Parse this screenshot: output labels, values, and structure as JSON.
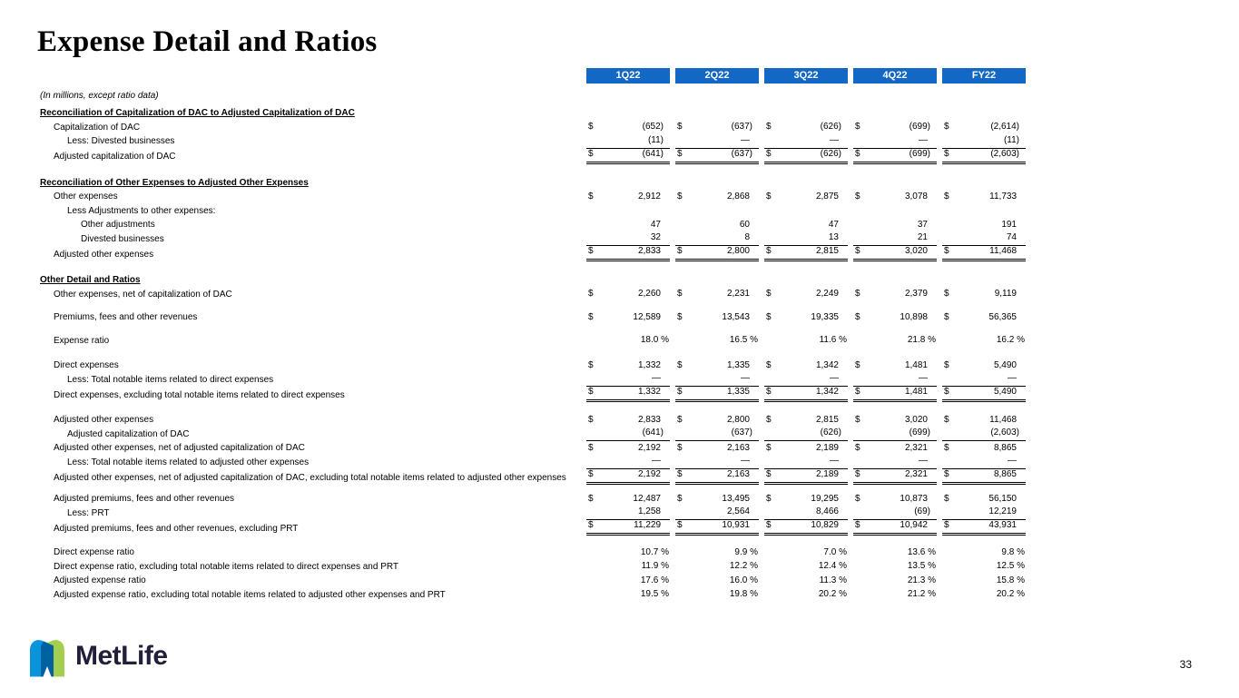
{
  "slide": {
    "title": "Expense Detail and Ratios",
    "units_note": "(In millions, except ratio data)",
    "page_number": "33"
  },
  "footer": {
    "logo_text": "MetLife"
  },
  "colors": {
    "header_blue": "#1268C4",
    "logo_light_blue": "#0090DA",
    "logo_green": "#A4CE4E",
    "logo_dark_blue": "#0061A0",
    "logo_word": "#20203a"
  },
  "table": {
    "columns": [
      "1Q22",
      "2Q22",
      "3Q22",
      "4Q22",
      "FY22"
    ],
    "rows": [
      {
        "type": "section",
        "label": "Reconciliation of Capitalization of DAC to Adjusted Capitalization of DAC"
      },
      {
        "type": "data",
        "indent": 1,
        "label": "Capitalization of DAC",
        "dollar": true,
        "values": [
          "(652)",
          "(637)",
          "(626)",
          "(699)",
          "(2,614)"
        ]
      },
      {
        "type": "data",
        "indent": 2,
        "label": "Less: Divested businesses",
        "values": [
          "(11)",
          "—",
          "—",
          "—",
          "(11)"
        ],
        "rule": "bottom"
      },
      {
        "type": "data",
        "indent": 1,
        "label": "Adjusted capitalization of DAC",
        "dollar": true,
        "values": [
          "(641)",
          "(637)",
          "(626)",
          "(699)",
          "(2,603)"
        ],
        "rule": "double"
      },
      {
        "type": "spacer",
        "h": 13
      },
      {
        "type": "section",
        "label": "Reconciliation of Other Expenses to Adjusted Other Expenses"
      },
      {
        "type": "data",
        "indent": 1,
        "label": "Other expenses",
        "dollar": true,
        "values": [
          "2,912",
          "2,868",
          "2,875",
          "3,078",
          "11,733"
        ]
      },
      {
        "type": "data",
        "indent": 2,
        "label": "Less Adjustments to other expenses:",
        "values": null
      },
      {
        "type": "data",
        "indent": 3,
        "label": "Other adjustments",
        "values": [
          "47",
          "60",
          "47",
          "37",
          "191"
        ]
      },
      {
        "type": "data",
        "indent": 3,
        "label": "Divested businesses",
        "values": [
          "32",
          "8",
          "13",
          "21",
          "74"
        ],
        "rule": "bottom"
      },
      {
        "type": "data",
        "indent": 1,
        "label": "Adjusted other expenses",
        "dollar": true,
        "values": [
          "2,833",
          "2,800",
          "2,815",
          "3,020",
          "11,468"
        ],
        "rule": "double"
      },
      {
        "type": "spacer",
        "h": 13
      },
      {
        "type": "section",
        "label": "Other Detail and Ratios"
      },
      {
        "type": "data",
        "indent": 1,
        "label": "Other expenses, net of capitalization of DAC",
        "dollar": true,
        "values": [
          "2,260",
          "2,231",
          "2,249",
          "2,379",
          "9,119"
        ]
      },
      {
        "type": "spacer",
        "h": 10
      },
      {
        "type": "data",
        "indent": 1,
        "label": "Premiums, fees and other revenues",
        "dollar": true,
        "values": [
          "12,589",
          "13,543",
          "19,335",
          "10,898",
          "56,365"
        ]
      },
      {
        "type": "spacer",
        "h": 10
      },
      {
        "type": "data",
        "indent": 1,
        "label": "Expense ratio",
        "values": [
          "18.0 %",
          "16.5 %",
          "11.6 %",
          "21.8 %",
          "16.2 %"
        ]
      },
      {
        "type": "spacer",
        "h": 12
      },
      {
        "type": "data",
        "indent": 1,
        "label": "Direct expenses",
        "dollar": true,
        "values": [
          "1,332",
          "1,335",
          "1,342",
          "1,481",
          "5,490"
        ]
      },
      {
        "type": "data",
        "indent": 2,
        "label": "Less: Total notable items related to direct expenses",
        "values": [
          "—",
          "—",
          "—",
          "—",
          "—"
        ],
        "rule": "bottom"
      },
      {
        "type": "data",
        "indent": 1,
        "label": "Direct expenses, excluding total notable items related to direct expenses",
        "dollar": true,
        "values": [
          "1,332",
          "1,335",
          "1,342",
          "1,481",
          "5,490"
        ],
        "rule": "double"
      },
      {
        "type": "spacer",
        "h": 12
      },
      {
        "type": "data",
        "indent": 1,
        "label": "Adjusted other expenses",
        "dollar": true,
        "values": [
          "2,833",
          "2,800",
          "2,815",
          "3,020",
          "11,468"
        ]
      },
      {
        "type": "data",
        "indent": 2,
        "label": "Adjusted capitalization of DAC",
        "values": [
          "(641)",
          "(637)",
          "(626)",
          "(699)",
          "(2,603)"
        ],
        "rule": "bottom"
      },
      {
        "type": "data",
        "indent": 1,
        "label": "Adjusted other expenses, net of adjusted capitalization of DAC",
        "dollar": true,
        "values": [
          "2,192",
          "2,163",
          "2,189",
          "2,321",
          "8,865"
        ]
      },
      {
        "type": "data",
        "indent": 2,
        "label": "Less: Total notable items related to adjusted other expenses",
        "values": [
          "—",
          "—",
          "—",
          "—",
          "—"
        ],
        "rule": "bottom"
      },
      {
        "type": "data",
        "indent": 1,
        "label": "Adjusted other expenses, net of adjusted capitalization of DAC, excluding total notable items related to adjusted other expenses",
        "dollar": true,
        "values": [
          "2,192",
          "2,163",
          "2,189",
          "2,321",
          "8,865"
        ],
        "rule": "double"
      },
      {
        "type": "spacer",
        "h": 8
      },
      {
        "type": "data",
        "indent": 1,
        "label": "Adjusted premiums, fees and other revenues",
        "dollar": true,
        "values": [
          "12,487",
          "13,495",
          "19,295",
          "10,873",
          "56,150"
        ]
      },
      {
        "type": "data",
        "indent": 2,
        "label": "Less: PRT",
        "values": [
          "1,258",
          "2,564",
          "8,466",
          "(69)",
          "12,219"
        ],
        "rule": "bottom"
      },
      {
        "type": "data",
        "indent": 1,
        "label": "Adjusted premiums, fees and other revenues, excluding PRT",
        "dollar": true,
        "values": [
          "11,229",
          "10,931",
          "10,829",
          "10,942",
          "43,931"
        ],
        "rule": "double"
      },
      {
        "type": "spacer",
        "h": 11
      },
      {
        "type": "data",
        "indent": 1,
        "label": "Direct expense ratio",
        "values": [
          "10.7 %",
          "9.9 %",
          "7.0 %",
          "13.6 %",
          "9.8 %"
        ]
      },
      {
        "type": "data",
        "indent": 1,
        "label": "Direct expense ratio, excluding total notable items related to direct expenses and PRT",
        "values": [
          "11.9 %",
          "12.2 %",
          "12.4 %",
          "13.5 %",
          "12.5 %"
        ]
      },
      {
        "type": "data",
        "indent": 1,
        "label": "Adjusted expense ratio",
        "values": [
          "17.6 %",
          "16.0 %",
          "11.3 %",
          "21.3 %",
          "15.8 %"
        ]
      },
      {
        "type": "data",
        "indent": 1,
        "label": "Adjusted expense ratio, excluding total notable items related to adjusted other expenses and PRT",
        "values": [
          "19.5 %",
          "19.8 %",
          "20.2 %",
          "21.2 %",
          "20.2 %"
        ]
      }
    ]
  }
}
